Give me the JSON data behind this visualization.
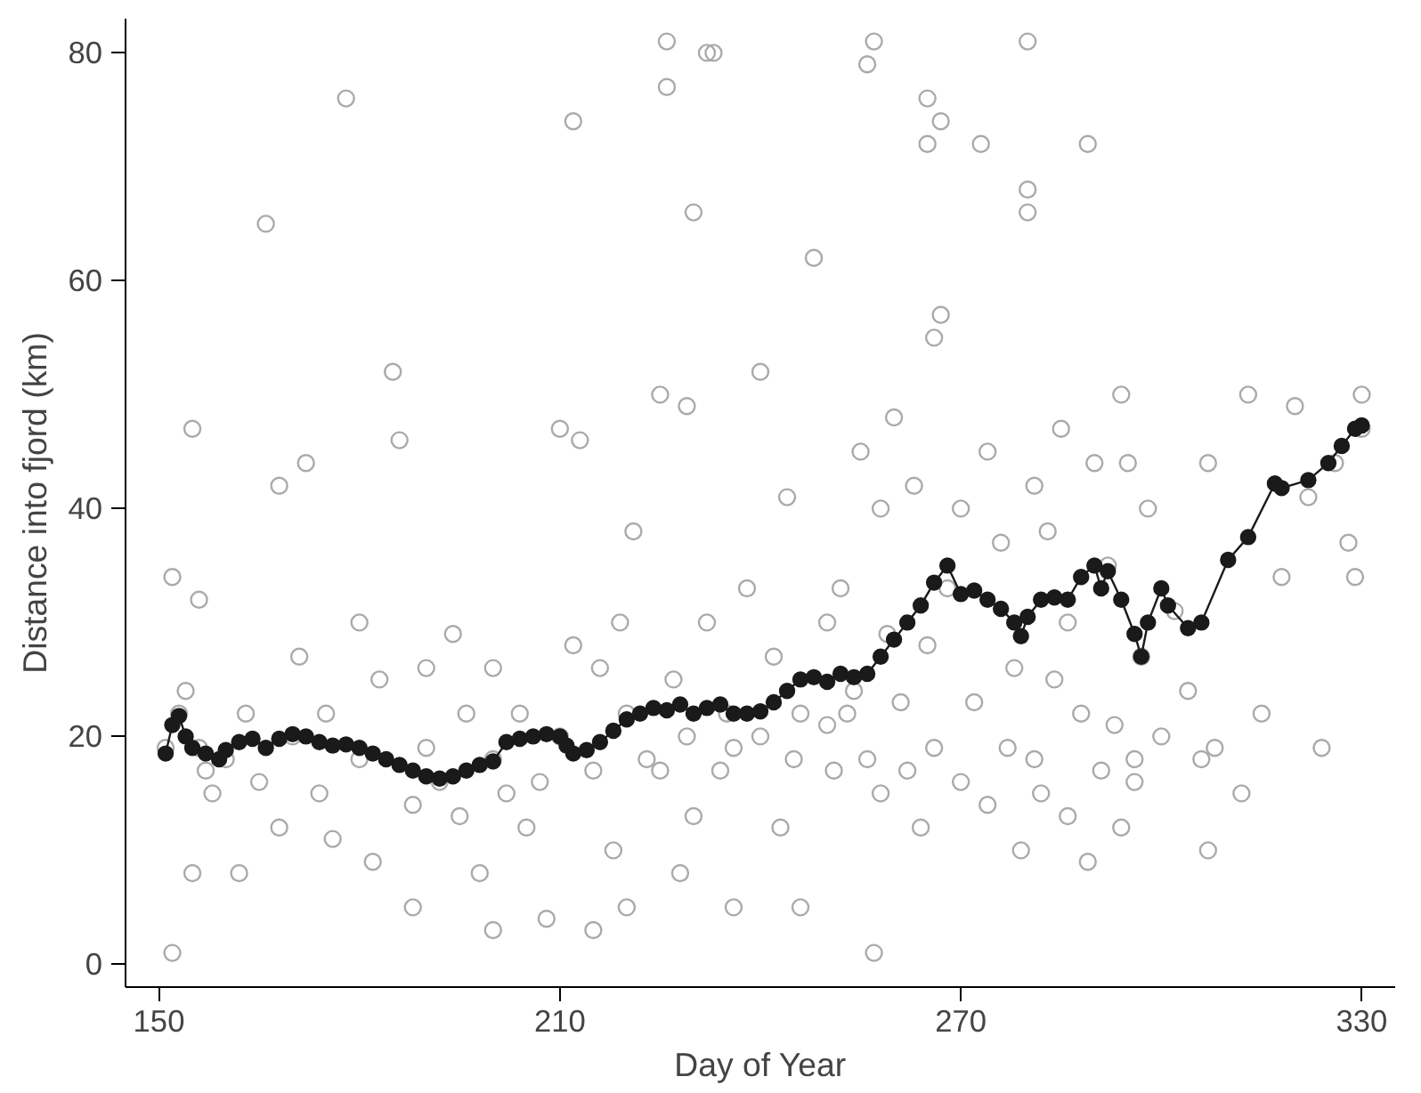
{
  "chart_data": {
    "type": "scatter",
    "xlabel": "Day of Year",
    "ylabel": "Distance into fjord (km)",
    "xlim": [
      145,
      335
    ],
    "ylim": [
      -2,
      83
    ],
    "xticks": [
      150,
      210,
      270,
      330
    ],
    "yticks": [
      0,
      20,
      40,
      60,
      80
    ],
    "grid": false,
    "series": [
      {
        "marker": "circle",
        "color": "#aaaaaa",
        "x": [
          151,
          152,
          152,
          153,
          154,
          155,
          155,
          156,
          156,
          157,
          158,
          160,
          162,
          163,
          165,
          166,
          168,
          168,
          170,
          171,
          172,
          174,
          175,
          176,
          178,
          180,
          180,
          182,
          183,
          185,
          186,
          188,
          188,
          190,
          190,
          192,
          194,
          195,
          196,
          198,
          200,
          200,
          200,
          202,
          204,
          205,
          207,
          208,
          210,
          210,
          212,
          212,
          213,
          215,
          215,
          216,
          218,
          219,
          220,
          220,
          221,
          223,
          225,
          225,
          226,
          226,
          227,
          228,
          229,
          229,
          230,
          230,
          232,
          232,
          233,
          234,
          235,
          236,
          236,
          238,
          240,
          240,
          242,
          243,
          244,
          245,
          246,
          246,
          248,
          250,
          250,
          251,
          252,
          253,
          254,
          255,
          256,
          256,
          257,
          257,
          258,
          258,
          259,
          260,
          261,
          262,
          263,
          264,
          265,
          265,
          265,
          266,
          266,
          267,
          267,
          268,
          270,
          270,
          272,
          273,
          274,
          274,
          276,
          277,
          278,
          279,
          280,
          280,
          280,
          281,
          281,
          282,
          283,
          284,
          285,
          286,
          286,
          288,
          289,
          289,
          290,
          291,
          292,
          293,
          294,
          294,
          295,
          296,
          296,
          297,
          298,
          300,
          302,
          304,
          306,
          307,
          307,
          308,
          312,
          313,
          315,
          318,
          320,
          322,
          324,
          326,
          328,
          329,
          330,
          330
        ],
        "values": [
          19,
          34,
          1,
          22,
          24,
          47,
          8,
          32,
          19,
          17,
          15,
          18,
          8,
          22,
          16,
          65,
          42,
          12,
          20,
          27,
          44,
          15,
          22,
          11,
          76,
          18,
          30,
          9,
          25,
          52,
          46,
          14,
          5,
          19,
          26,
          16,
          29,
          13,
          22,
          8,
          26,
          18,
          3,
          15,
          22,
          12,
          16,
          4,
          47,
          20,
          74,
          28,
          46,
          17,
          3,
          26,
          10,
          30,
          22,
          5,
          38,
          18,
          50,
          17,
          77,
          81,
          25,
          8,
          49,
          20,
          66,
          13,
          80,
          30,
          80,
          17,
          22,
          19,
          5,
          33,
          52,
          20,
          27,
          12,
          41,
          18,
          5,
          22,
          62,
          21,
          30,
          17,
          33,
          22,
          24,
          45,
          79,
          18,
          1,
          81,
          40,
          15,
          29,
          48,
          23,
          17,
          42,
          12,
          76,
          72,
          28,
          55,
          19,
          74,
          57,
          33,
          16,
          40,
          23,
          72,
          45,
          14,
          37,
          19,
          26,
          10,
          81,
          66,
          68,
          18,
          42,
          15,
          38,
          25,
          47,
          13,
          30,
          22,
          72,
          9,
          44,
          17,
          35,
          21,
          50,
          12,
          44,
          18,
          16,
          27,
          40,
          20,
          31,
          24,
          18,
          10,
          44,
          19,
          15,
          50,
          22,
          34,
          49,
          41,
          19,
          44,
          37,
          34,
          50,
          47
        ]
      },
      {
        "type": "line",
        "marker": "circle",
        "color": "#1a1a1a",
        "line_style": "solid",
        "x": [
          151,
          152,
          153,
          154,
          155,
          157,
          159,
          160,
          162,
          164,
          166,
          168,
          170,
          172,
          174,
          176,
          178,
          180,
          182,
          184,
          186,
          188,
          190,
          192,
          194,
          196,
          198,
          200,
          202,
          204,
          206,
          208,
          210,
          211,
          212,
          214,
          216,
          218,
          220,
          222,
          224,
          226,
          228,
          230,
          232,
          234,
          236,
          238,
          240,
          242,
          244,
          246,
          248,
          250,
          252,
          254,
          256,
          258,
          260,
          262,
          264,
          266,
          268,
          270,
          272,
          274,
          276,
          278,
          279,
          280,
          282,
          284,
          286,
          288,
          290,
          291,
          292,
          294,
          296,
          297,
          298,
          300,
          301,
          304,
          306,
          310,
          313,
          317,
          318,
          322,
          325,
          327,
          329,
          330
        ],
        "values": [
          18.5,
          21,
          21.8,
          20,
          19,
          18.5,
          18,
          18.8,
          19.5,
          19.8,
          19,
          19.8,
          20.2,
          20,
          19.5,
          19.2,
          19.3,
          19,
          18.5,
          18,
          17.5,
          17,
          16.5,
          16.3,
          16.5,
          17,
          17.5,
          17.8,
          19.5,
          19.8,
          20,
          20.2,
          20,
          19.2,
          18.5,
          18.8,
          19.5,
          20.5,
          21.5,
          22,
          22.5,
          22.3,
          22.8,
          22,
          22.5,
          22.8,
          22,
          22,
          22.2,
          23,
          24,
          25,
          25.2,
          24.8,
          25.5,
          25.2,
          25.5,
          27,
          28.5,
          30,
          31.5,
          33.5,
          35,
          32.5,
          32.8,
          32,
          31.2,
          30,
          28.8,
          30.5,
          32,
          32.2,
          32,
          34,
          35,
          33,
          34.5,
          32,
          29,
          27,
          30,
          33,
          31.5,
          29.5,
          30,
          35.5,
          37.5,
          42.2,
          41.8,
          42.5,
          44,
          45.5,
          47,
          47.3
        ]
      }
    ]
  }
}
